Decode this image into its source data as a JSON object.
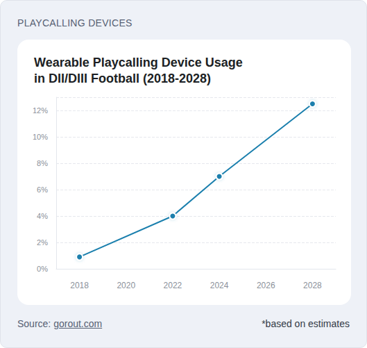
{
  "header": "PLAYCALLING DEVICES",
  "source_label": "Source:",
  "source": "gorout.com",
  "note": "*based on estimates",
  "chart_data": {
    "type": "line",
    "title": "Wearable Playcalling Device Usage\nin DII/DIII Football (2018-2028)",
    "x": [
      2018,
      2022,
      2024,
      2028
    ],
    "values": [
      0.9,
      4,
      7,
      12.5
    ],
    "color": "#1a7fad",
    "marker": "circle",
    "xlim": [
      2017,
      2029
    ],
    "xticks": [
      2018,
      2020,
      2022,
      2024,
      2026,
      2028
    ],
    "ylim": [
      0,
      13
    ],
    "yticks": [
      {
        "value": 0,
        "label": "0%"
      },
      {
        "value": 2,
        "label": "2%"
      },
      {
        "value": 4,
        "label": "4%"
      },
      {
        "value": 6,
        "label": "6%"
      },
      {
        "value": 8,
        "label": "8%"
      },
      {
        "value": 10,
        "label": "10%"
      },
      {
        "value": 12,
        "label": "12%"
      }
    ],
    "grid": true
  }
}
